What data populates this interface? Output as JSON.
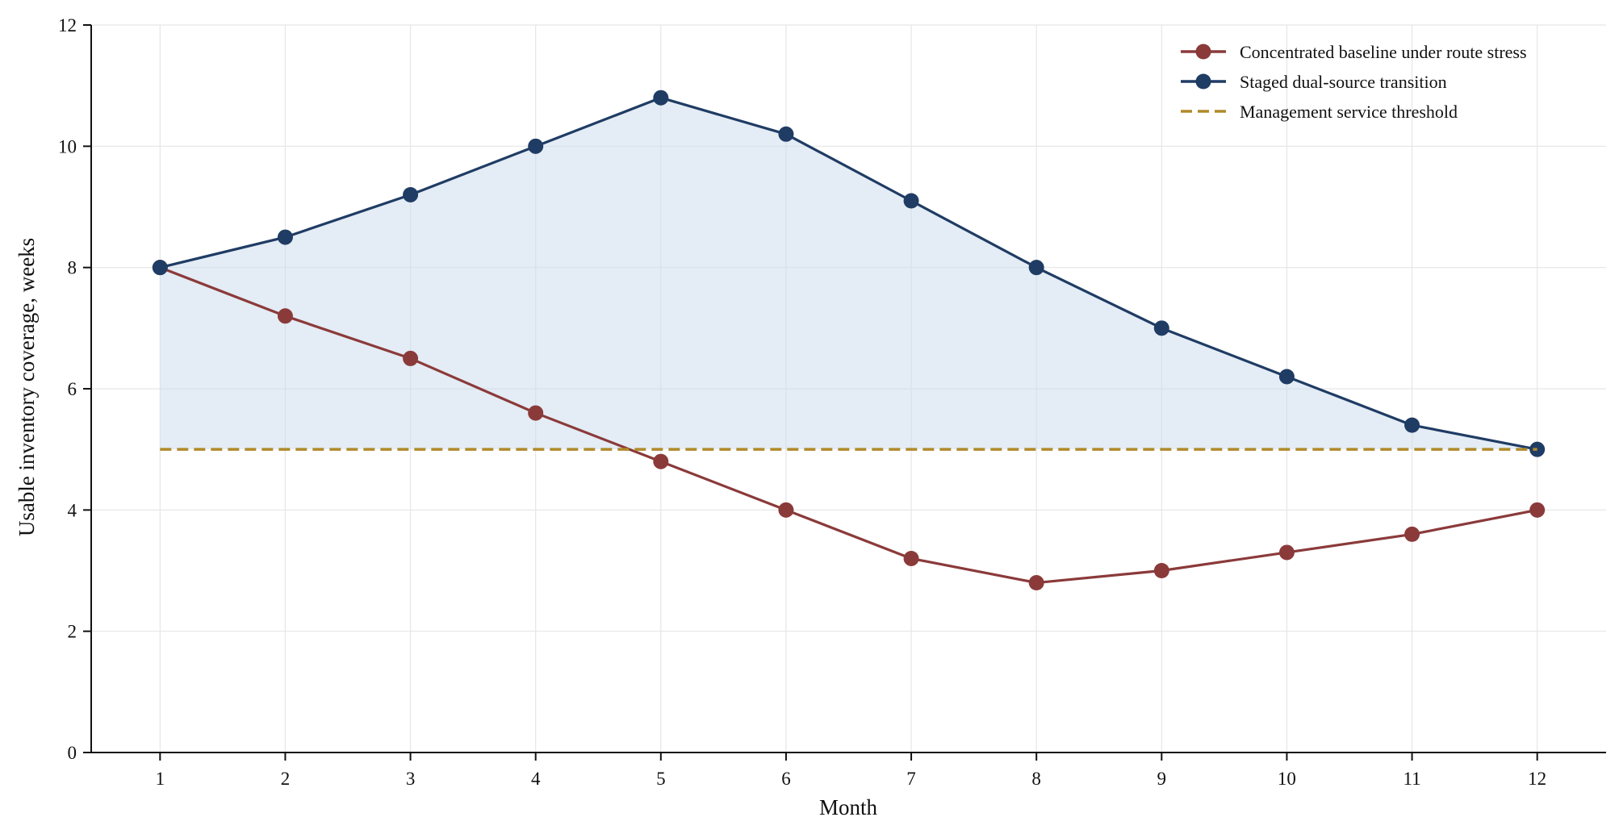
{
  "chart_data": {
    "type": "line",
    "title": "",
    "xlabel": "Month",
    "ylabel": "Usable inventory coverage, weeks",
    "x": [
      1,
      2,
      3,
      4,
      5,
      6,
      7,
      8,
      9,
      10,
      11,
      12
    ],
    "xlim": [
      0.45,
      12.55
    ],
    "ylim": [
      0,
      12
    ],
    "yticks": [
      0,
      2,
      4,
      6,
      8,
      10,
      12
    ],
    "grid": true,
    "legend_position": "top-right",
    "series": [
      {
        "name": "Concentrated baseline under route stress",
        "color": "#8b3a3a",
        "style": "solid-markers",
        "values": [
          8.0,
          7.2,
          6.5,
          5.6,
          4.8,
          4.0,
          3.2,
          2.8,
          3.0,
          3.3,
          3.6,
          4.0
        ]
      },
      {
        "name": "Staged dual-source transition",
        "color": "#1f3c64",
        "style": "solid-markers",
        "values": [
          8.0,
          8.5,
          9.2,
          10.0,
          10.8,
          10.2,
          9.1,
          8.0,
          7.0,
          6.2,
          5.4,
          5.0
        ]
      },
      {
        "name": "Management service threshold",
        "color": "#b08a2a",
        "style": "dashed",
        "values": [
          5,
          5,
          5,
          5,
          5,
          5,
          5,
          5,
          5,
          5,
          5,
          5
        ]
      }
    ],
    "fill_between": {
      "upper_series": 1,
      "lower_series": 2,
      "color": "#c9d9ec"
    }
  }
}
